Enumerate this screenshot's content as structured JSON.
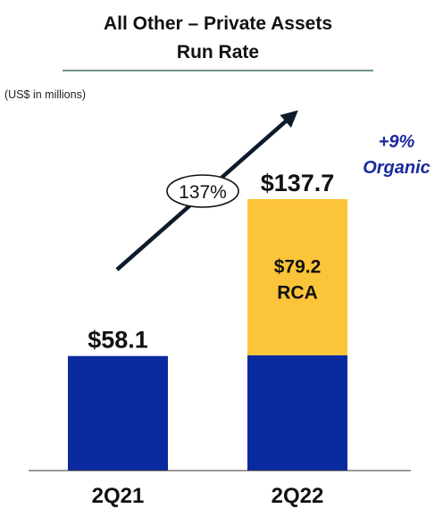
{
  "header": {
    "title_line1": "All Other – Private Assets",
    "title_line2": "Run Rate",
    "units_note": "(US$ in millions)"
  },
  "annotations": {
    "growth_label": "137%",
    "organic_line1": "+9%",
    "organic_line2": "Organic"
  },
  "colors": {
    "base": "#0a2aa0",
    "rca": "#fcc438",
    "rule": "#1f4e3d",
    "organic_text": "#1a2a9e",
    "arrow": "#0d1b2a"
  },
  "chart_data": {
    "type": "bar",
    "stacked": true,
    "categories": [
      "2Q21",
      "2Q22"
    ],
    "series": [
      {
        "name": "",
        "values": [
          58.1,
          58.5
        ]
      },
      {
        "name": "RCA",
        "values": [
          0,
          79.2
        ]
      }
    ],
    "totals": [
      58.1,
      137.7
    ],
    "total_labels": [
      "$58.1",
      "$137.7"
    ],
    "segment_labels": {
      "value": "$79.2",
      "name": "RCA"
    },
    "ylim": [
      0,
      137.7
    ],
    "xlabel": "",
    "ylabel": "",
    "grid": false
  }
}
